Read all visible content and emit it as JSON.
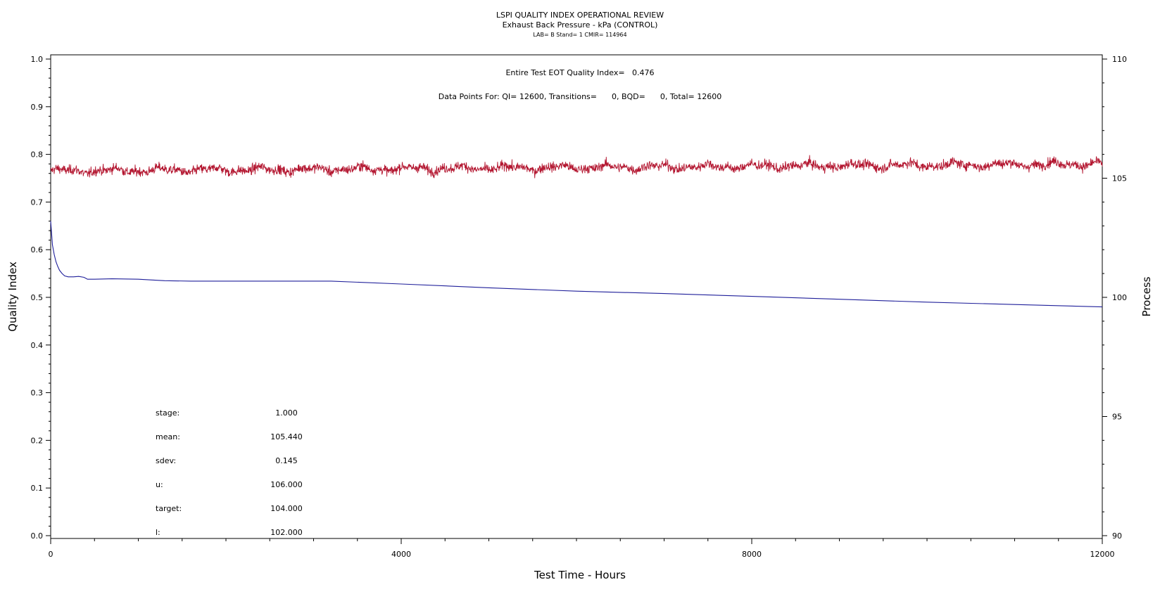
{
  "chart_data": {
    "type": "line",
    "title": "LSPI QUALITY INDEX OPERATIONAL REVIEW",
    "subtitle": "Exhaust Back Pressure - kPa (CONTROL)",
    "subsubtitle": "LAB= B Stand= 1 CMIR= 114964",
    "xlabel": "Test Time - Hours",
    "ylabel_left": "Quality Index",
    "ylabel_right": "Process",
    "xlim": [
      0,
      12000
    ],
    "ylim_left": [
      0,
      1.0
    ],
    "ylim_right": [
      90,
      110
    ],
    "x_ticks": [
      "0",
      "4000",
      "8000",
      "12000"
    ],
    "y_left_ticks": [
      "0.0",
      "0.1",
      "0.2",
      "0.3",
      "0.4",
      "0.5",
      "0.6",
      "0.7",
      "0.8",
      "0.9",
      "1.0"
    ],
    "y_right_ticks": [
      "90",
      "95",
      "100",
      "105",
      "110"
    ],
    "grid": false,
    "annotations": {
      "eot": "Entire Test EOT Quality Index=   0.476",
      "points": "Data Points For: QI= 12600, Transitions=      0, BQD=      0, Total= 12600"
    },
    "stats": [
      {
        "label": "stage:",
        "value": "1.000"
      },
      {
        "label": "mean:",
        "value": "105.440"
      },
      {
        "label": "sdev:",
        "value": "0.145"
      },
      {
        "label": "u:",
        "value": "106.000"
      },
      {
        "label": "target:",
        "value": "104.000"
      },
      {
        "label": "l:",
        "value": "102.000"
      }
    ],
    "series": [
      {
        "axis": "left",
        "color": "#1f1f9a",
        "x": [
          0,
          20,
          40,
          60,
          80,
          100,
          130,
          160,
          200,
          260,
          320,
          380,
          420,
          500,
          700,
          1000,
          1300,
          1600,
          2000,
          2400,
          2800,
          3200,
          4000,
          5000,
          6000,
          7000,
          8000,
          9000,
          10000,
          11000,
          12000
        ],
        "values": [
          0.66,
          0.61,
          0.59,
          0.575,
          0.565,
          0.557,
          0.55,
          0.545,
          0.543,
          0.543,
          0.544,
          0.542,
          0.538,
          0.538,
          0.539,
          0.538,
          0.535,
          0.534,
          0.534,
          0.534,
          0.534,
          0.534,
          0.528,
          0.52,
          0.513,
          0.508,
          0.502,
          0.496,
          0.49,
          0.485,
          0.48
        ]
      },
      {
        "axis": "right",
        "color": "#b3152f",
        "x": [
          0,
          2000,
          4000,
          6000,
          8000,
          10000,
          12000
        ],
        "values": [
          105.3,
          105.35,
          105.4,
          105.45,
          105.5,
          105.55,
          105.6
        ],
        "noise_sdev": 0.145
      }
    ]
  }
}
